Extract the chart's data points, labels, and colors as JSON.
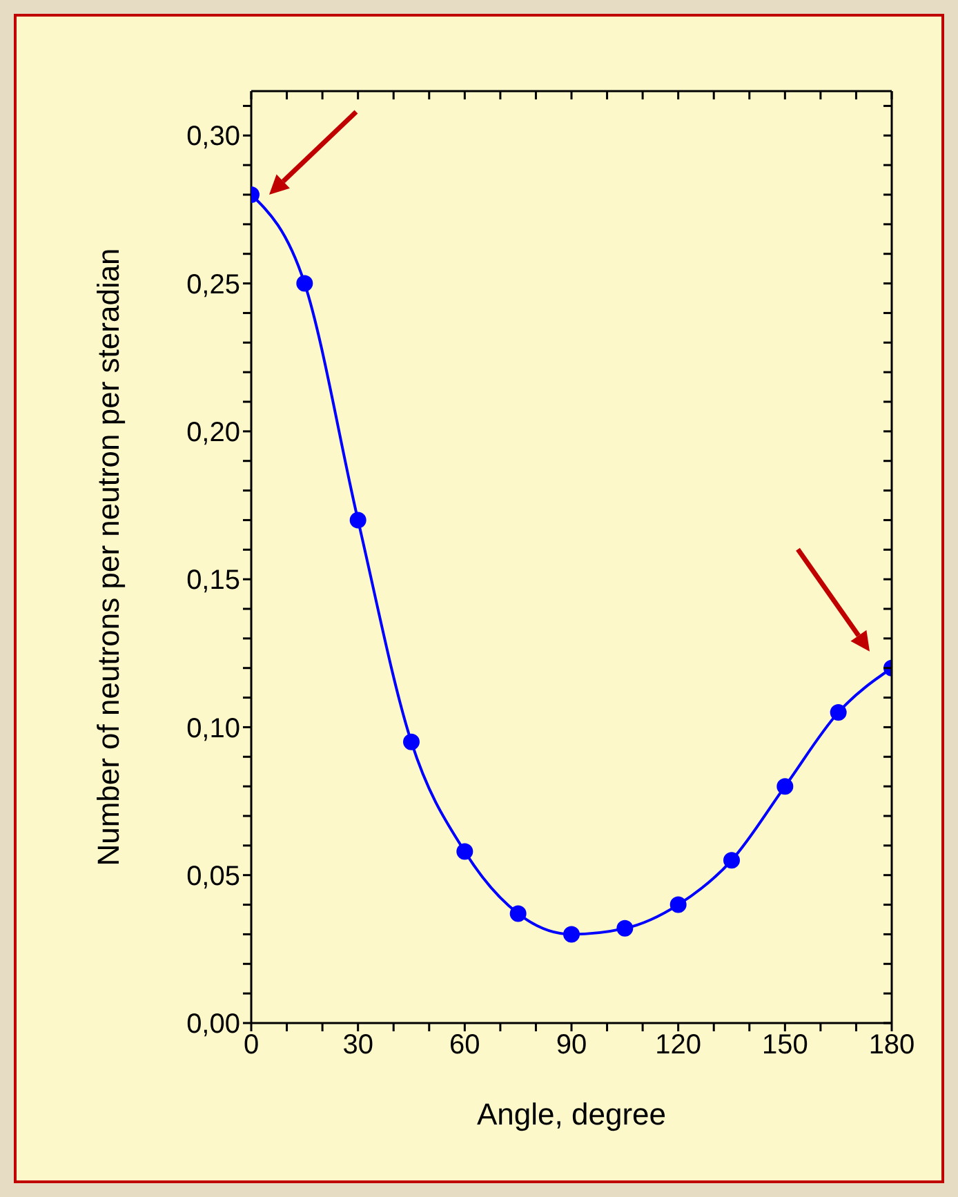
{
  "chart_data": {
    "type": "line",
    "xlabel": "Angle, degree",
    "ylabel": "Number of neutrons per neutron per steradian",
    "x": [
      0,
      15,
      30,
      45,
      60,
      75,
      90,
      105,
      120,
      135,
      150,
      165,
      180
    ],
    "series": [
      {
        "color": "#0000ff",
        "values": [
          0.28,
          0.25,
          0.17,
          0.095,
          0.058,
          0.037,
          0.03,
          0.032,
          0.04,
          0.055,
          0.08,
          0.105,
          0.12
        ]
      }
    ],
    "xlim": [
      0,
      180
    ],
    "xticks": [
      0,
      {
        "value": 10,
        "label": null
      },
      {
        "value": 20,
        "label": null
      },
      30,
      {
        "value": 40,
        "label": null
      },
      {
        "value": 50,
        "label": null
      },
      60,
      {
        "value": 70,
        "label": null
      },
      {
        "value": 80,
        "label": null
      },
      90,
      {
        "value": 100,
        "label": null
      },
      {
        "value": 110,
        "label": null
      },
      120,
      {
        "value": 130,
        "label": null
      },
      {
        "value": 140,
        "label": null
      },
      150,
      {
        "value": 160,
        "label": null
      },
      {
        "value": 170,
        "label": null
      },
      180
    ],
    "ylim": [
      0,
      0.315
    ],
    "yticks": [
      {
        "value": 0,
        "label": "0,00"
      },
      {
        "value": 0.01,
        "label": null
      },
      {
        "value": 0.02,
        "label": null
      },
      {
        "value": 0.03,
        "label": null
      },
      {
        "value": 0.04,
        "label": null
      },
      {
        "value": 0.05,
        "label": "0,05"
      },
      {
        "value": 0.06,
        "label": null
      },
      {
        "value": 0.07,
        "label": null
      },
      {
        "value": 0.08,
        "label": null
      },
      {
        "value": 0.09,
        "label": null
      },
      {
        "value": 0.1,
        "label": "0,10"
      },
      {
        "value": 0.11,
        "label": null
      },
      {
        "value": 0.12,
        "label": null
      },
      {
        "value": 0.13,
        "label": null
      },
      {
        "value": 0.14,
        "label": null
      },
      {
        "value": 0.15,
        "label": "0,15"
      },
      {
        "value": 0.16,
        "label": null
      },
      {
        "value": 0.17,
        "label": null
      },
      {
        "value": 0.18,
        "label": null
      },
      {
        "value": 0.19,
        "label": null
      },
      {
        "value": 0.2,
        "label": "0,20"
      },
      {
        "value": 0.21,
        "label": null
      },
      {
        "value": 0.22,
        "label": null
      },
      {
        "value": 0.23,
        "label": null
      },
      {
        "value": 0.24,
        "label": null
      },
      {
        "value": 0.25,
        "label": "0,25"
      },
      {
        "value": 0.26,
        "label": null
      },
      {
        "value": 0.27,
        "label": null
      },
      {
        "value": 0.28,
        "label": null
      },
      {
        "value": 0.29,
        "label": null
      },
      {
        "value": 0.3,
        "label": "0,30"
      },
      {
        "value": 0.31,
        "label": null
      }
    ],
    "grid": false,
    "legend": false,
    "marker": "circle",
    "line_style": "solid"
  }
}
